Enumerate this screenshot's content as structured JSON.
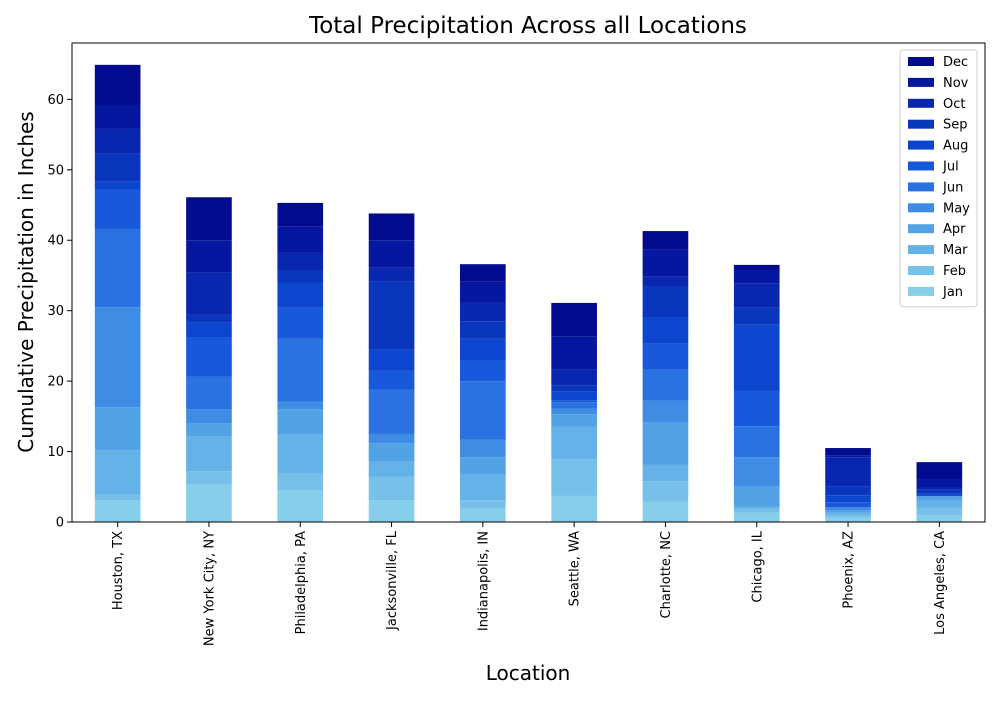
{
  "chart_data": {
    "type": "bar",
    "stacked": true,
    "title": "Total Precipitation Across all Locations",
    "xlabel": "Location",
    "ylabel": "Cumulative Precipitation in Inches",
    "ylim": [
      0,
      68
    ],
    "yticks": [
      0,
      10,
      20,
      30,
      40,
      50,
      60
    ],
    "legend_position": "top-right",
    "categories": [
      "Houston, TX",
      "New York City, NY",
      "Philadelphia, PA",
      "Jacksonville, FL",
      "Indianapolis, IN",
      "Seattle, WA",
      "Charlotte, NC",
      "Chicago, IL",
      "Phoenix, AZ",
      "Los Angeles, CA"
    ],
    "series": [
      {
        "name": "Jan",
        "color": "#87CEEB",
        "values": [
          3.1,
          5.3,
          4.5,
          3.1,
          1.9,
          3.7,
          2.9,
          1.3,
          0.6,
          1.0
        ]
      },
      {
        "name": "Feb",
        "color": "#76C0EA",
        "values": [
          0.8,
          1.9,
          2.4,
          3.3,
          1.2,
          5.2,
          2.9,
          0.6,
          0.4,
          1.0
        ]
      },
      {
        "name": "Mar",
        "color": "#64B2E8",
        "values": [
          6.3,
          4.9,
          5.5,
          2.2,
          3.6,
          4.6,
          2.3,
          0.3,
          0.3,
          1.0
        ]
      },
      {
        "name": "Apr",
        "color": "#52A3E6",
        "values": [
          6.1,
          1.9,
          3.6,
          2.6,
          2.5,
          1.8,
          6.1,
          2.8,
          0.4,
          0.6
        ]
      },
      {
        "name": "May",
        "color": "#3E8CE4",
        "values": [
          14.2,
          2.0,
          1.1,
          1.3,
          2.5,
          0.8,
          3.0,
          4.2,
          0.3,
          0.1
        ]
      },
      {
        "name": "Jun",
        "color": "#2A72E2",
        "values": [
          11.1,
          4.6,
          8.9,
          6.3,
          8.3,
          0.9,
          4.4,
          4.4,
          0.1,
          0.0
        ]
      },
      {
        "name": "Jul",
        "color": "#1858DB",
        "values": [
          5.6,
          5.6,
          4.4,
          2.7,
          3.0,
          0.3,
          3.7,
          5.0,
          0.7,
          0.0
        ]
      },
      {
        "name": "Aug",
        "color": "#0D46CE",
        "values": [
          1.1,
          2.1,
          3.6,
          3.0,
          3.0,
          1.2,
          3.8,
          9.4,
          1.0,
          0.3
        ]
      },
      {
        "name": "Sep",
        "color": "#0A36BE",
        "values": [
          4.0,
          1.1,
          1.7,
          9.7,
          2.5,
          0.9,
          4.4,
          2.4,
          1.3,
          0.6
        ]
      },
      {
        "name": "Oct",
        "color": "#0827AE",
        "values": [
          3.5,
          6.0,
          2.5,
          1.9,
          2.6,
          2.2,
          1.3,
          3.5,
          4.1,
          0.3
        ]
      },
      {
        "name": "Nov",
        "color": "#05179E",
        "values": [
          3.4,
          4.6,
          3.8,
          3.9,
          3.0,
          4.7,
          3.9,
          1.8,
          0.2,
          1.2
        ]
      },
      {
        "name": "Dec",
        "color": "#020A8E",
        "values": [
          5.7,
          6.1,
          3.3,
          3.8,
          2.5,
          4.8,
          2.6,
          0.8,
          1.1,
          2.4
        ]
      }
    ]
  }
}
